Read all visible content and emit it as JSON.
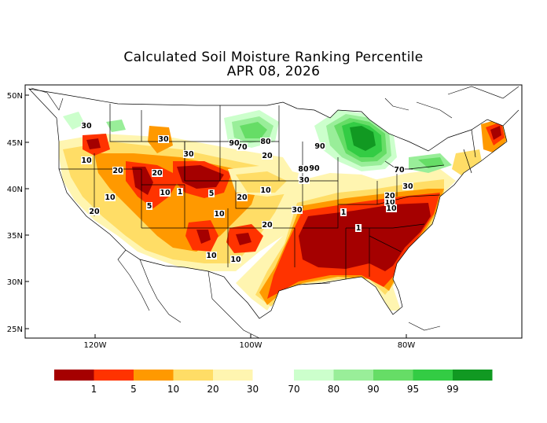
{
  "title": {
    "line1": "Calculated Soil Moisture Ranking Percentile",
    "line2": "APR 08, 2026"
  },
  "axes": {
    "lat_labels": [
      "50N",
      "45N",
      "40N",
      "35N",
      "30N",
      "25N"
    ],
    "lon_labels": [
      "120W",
      "100W",
      "80W"
    ]
  },
  "contour_labels": [
    "1",
    "1",
    "1",
    "5",
    "5",
    "10",
    "10",
    "10",
    "10",
    "10",
    "10",
    "10",
    "10",
    "10",
    "20",
    "20",
    "20",
    "20",
    "20",
    "20",
    "20",
    "30",
    "30",
    "30",
    "30",
    "30",
    "30",
    "70",
    "70",
    "80",
    "80",
    "90",
    "90",
    "90"
  ],
  "legend": {
    "dry": {
      "labels": [
        "1",
        "5",
        "10",
        "20",
        "30"
      ],
      "colors": [
        "#a50000",
        "#ff3300",
        "#ff9900",
        "#ffdd66",
        "#fff5b0"
      ]
    },
    "wet": {
      "labels": [
        "70",
        "80",
        "90",
        "95",
        "99"
      ],
      "colors": [
        "#ccffcc",
        "#99ee99",
        "#66dd66",
        "#33cc44",
        "#119922"
      ]
    }
  },
  "colors": {
    "dry_1": "#a50000",
    "dry_5": "#ff3300",
    "dry_10": "#ff9900",
    "dry_20": "#ffdd66",
    "dry_30": "#fff5b0",
    "wet_70": "#ccffcc",
    "wet_80": "#99ee99",
    "wet_90": "#66dd66",
    "wet_95": "#33cc44",
    "wet_99": "#119922"
  }
}
